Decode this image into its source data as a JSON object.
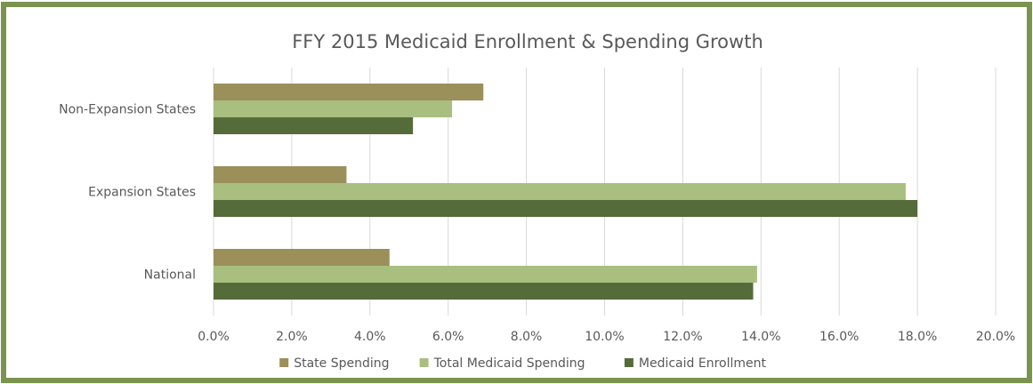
{
  "chart_data": {
    "type": "bar",
    "orientation": "horizontal",
    "title": "FFY 2015 Medicaid Enrollment & Spending Growth",
    "categories": [
      "Non-Expansion States",
      "Expansion States",
      "National"
    ],
    "series": [
      {
        "name": "State Spending",
        "color": "#9b8f5a",
        "values": [
          6.9,
          3.4,
          4.5
        ]
      },
      {
        "name": "Total Medicaid Spending",
        "color": "#a9bf7f",
        "values": [
          6.1,
          17.7,
          13.9
        ]
      },
      {
        "name": "Medicaid Enrollment",
        "color": "#556b3a",
        "values": [
          5.1,
          18.0,
          13.8
        ]
      }
    ],
    "value_unit": "%",
    "xlim": [
      0,
      20
    ],
    "x_ticks": [
      0,
      2,
      4,
      6,
      8,
      10,
      12,
      14,
      16,
      18,
      20
    ],
    "x_tick_labels": [
      "0.0%",
      "2.0%",
      "4.0%",
      "6.0%",
      "8.0%",
      "10.0%",
      "12.0%",
      "14.0%",
      "16.0%",
      "18.0%",
      "20.0%"
    ],
    "grid": true,
    "legend_position": "bottom",
    "frame_color": "#7a9450"
  }
}
